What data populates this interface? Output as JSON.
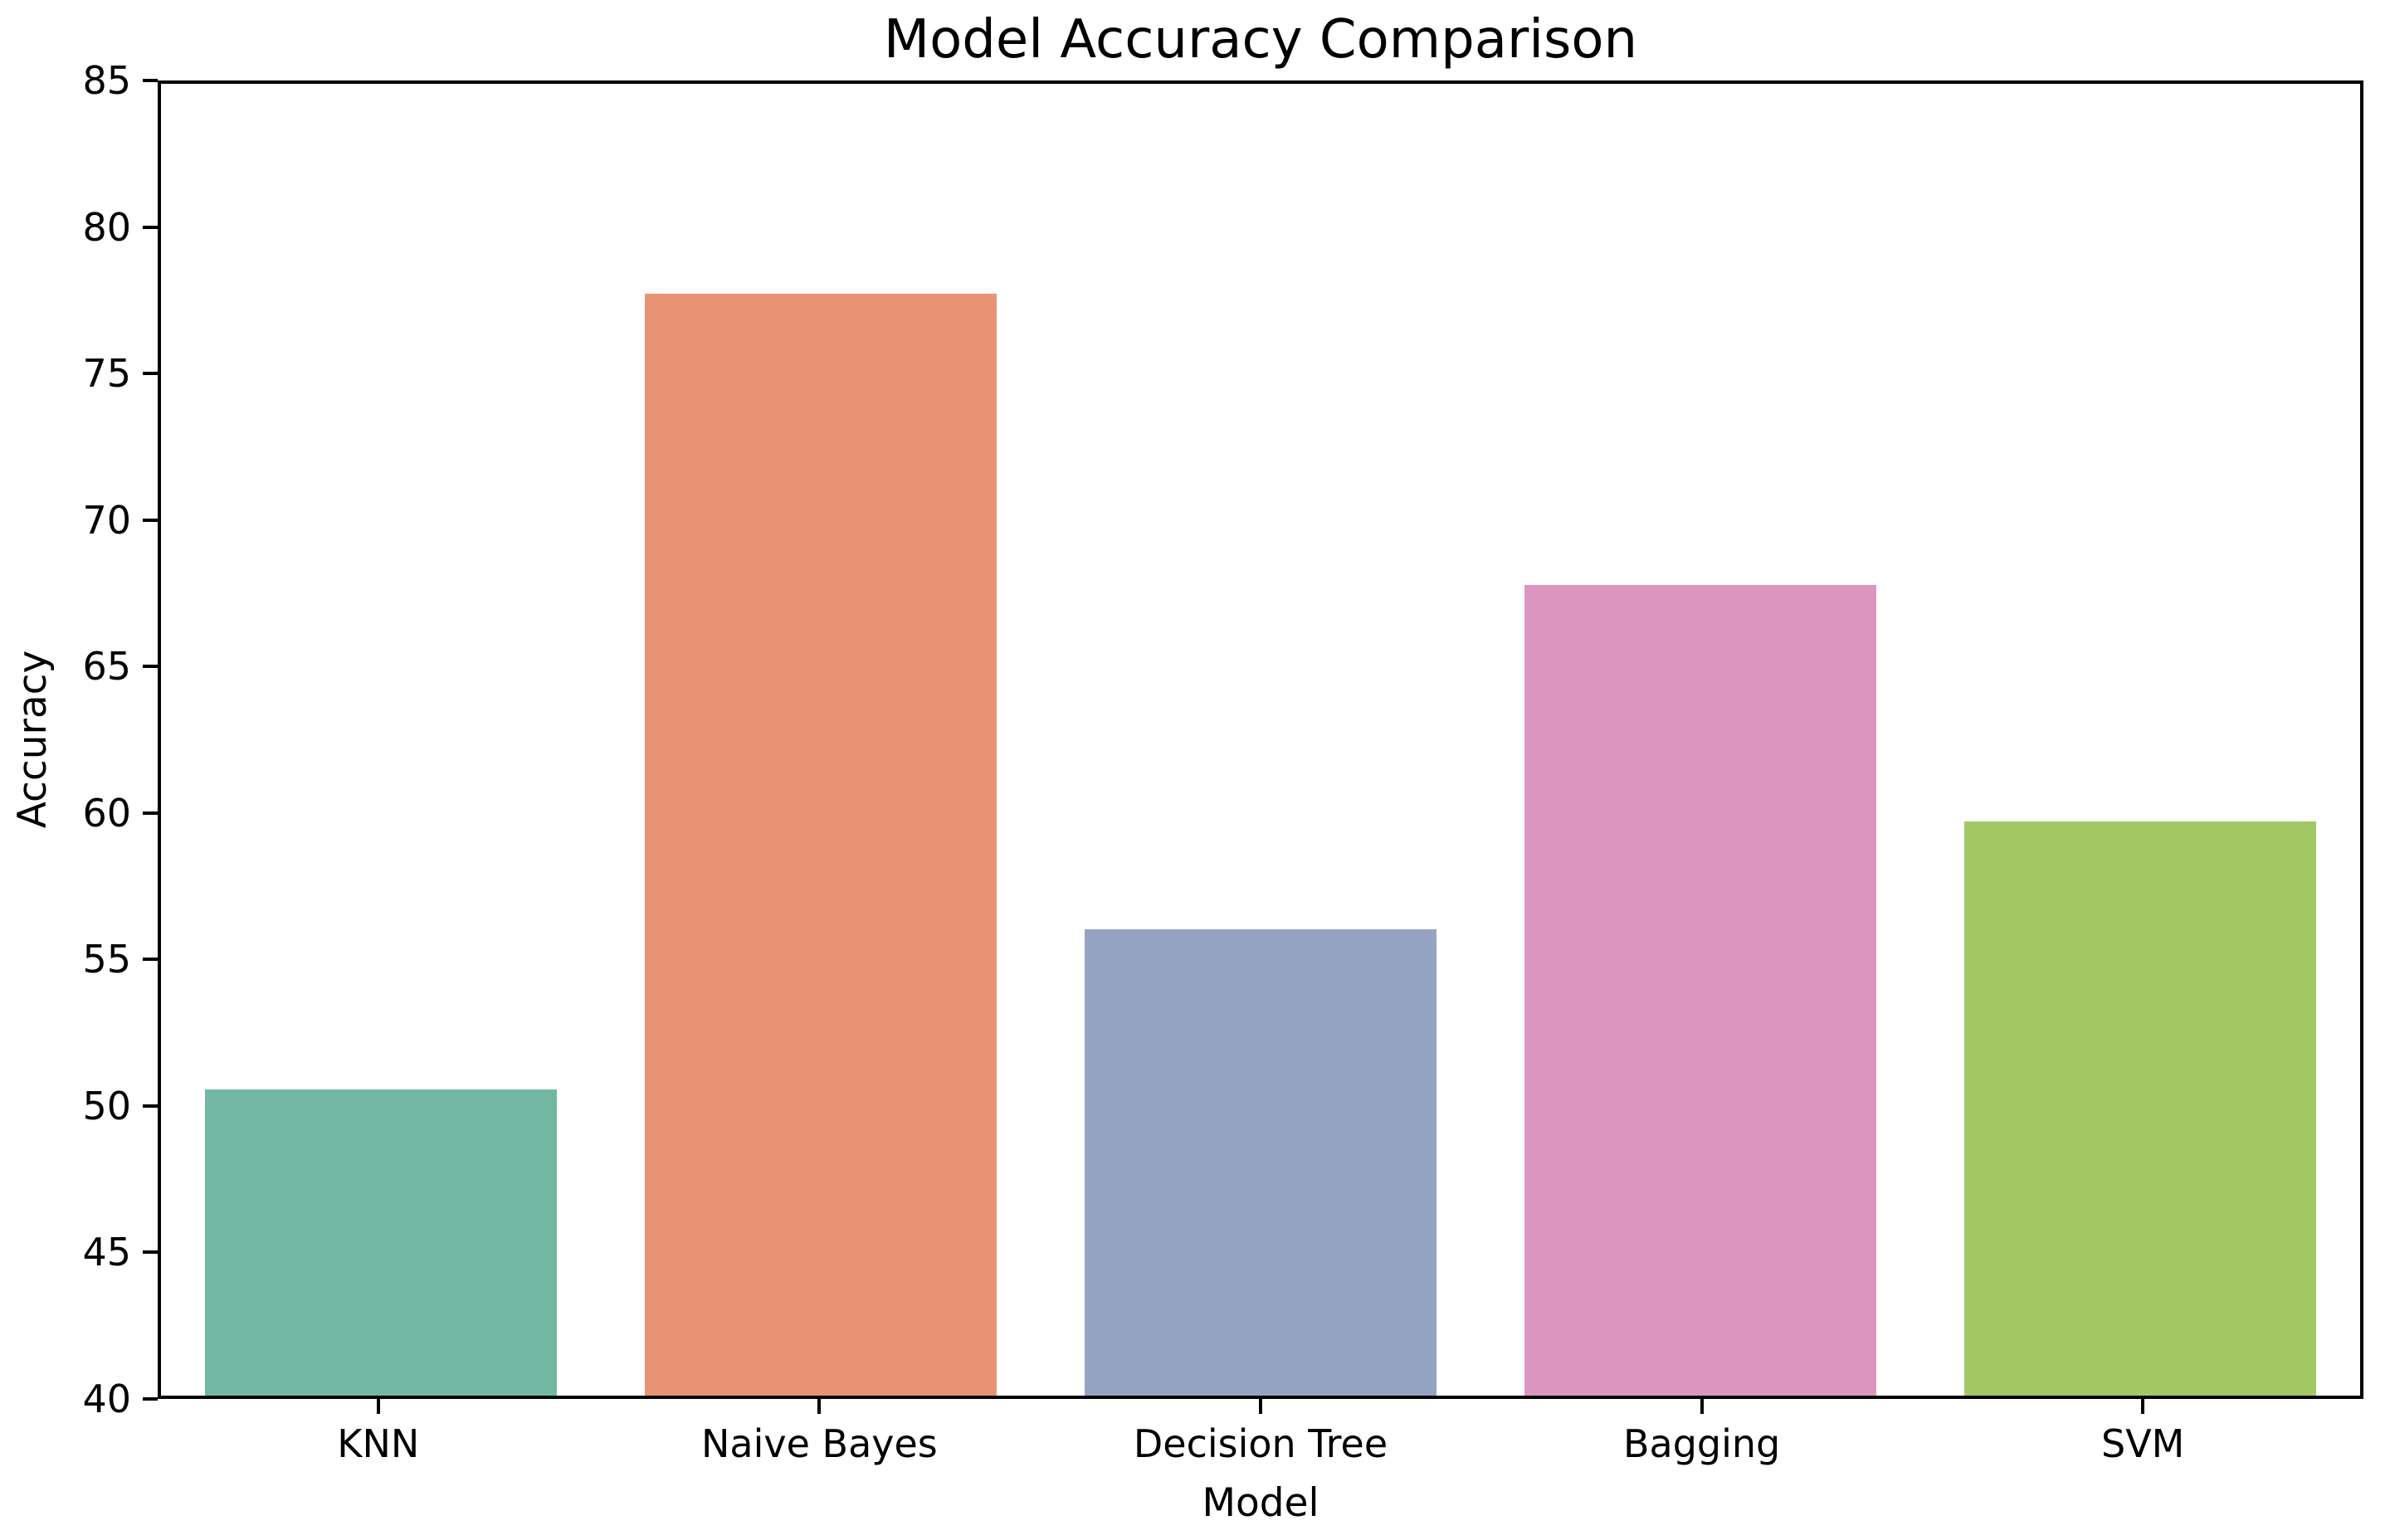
{
  "figure": {
    "background_color": "#ffffff",
    "text_color": "#000000",
    "spine_color": "#000000"
  },
  "chart_data": {
    "type": "bar",
    "title": "Model Accuracy Comparison",
    "xlabel": "Model",
    "ylabel": "Accuracy",
    "categories": [
      "KNN",
      "Naive Bayes",
      "Decision Tree",
      "Bagging",
      "SVM"
    ],
    "values": [
      50.5,
      77.8,
      56.0,
      67.8,
      59.7
    ],
    "bar_colors": [
      "#72b7a1",
      "#e89474",
      "#95a3c3",
      "#db96c0",
      "#a2c865"
    ],
    "ylim": [
      40,
      85
    ],
    "yticks": [
      40,
      45,
      50,
      55,
      60,
      65,
      70,
      75,
      80,
      85
    ],
    "grid": false,
    "legend_position": "none"
  }
}
